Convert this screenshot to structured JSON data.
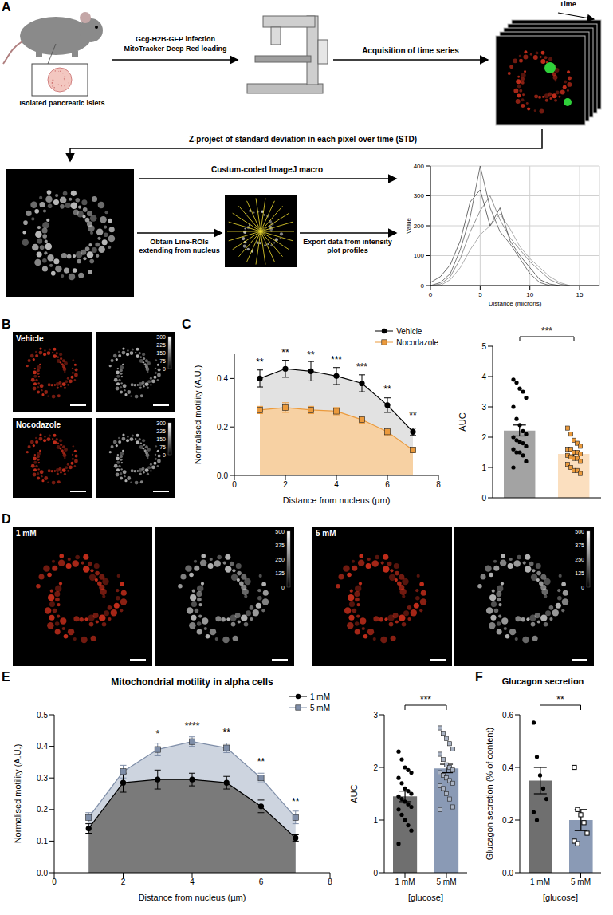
{
  "schematic": {
    "letter": "A",
    "infection_label": "Gcg-H2B-GFP infection",
    "loading_label": "MitoTracker Deep Red loading",
    "islets_label": "Isolated pancreatic islets",
    "acquisition_label": "Acquisition of time series",
    "time_label": "Time",
    "projection_label": "Z-project of standard deviation in each pixel over time (STD)",
    "macro_label": "Custum-coded ImageJ macro",
    "roi_label": "Obtain Line-ROIs extending from nucleus",
    "export_label": "Export data from intensity plot profiles"
  },
  "micrographs": [
    {
      "letter": "B",
      "labels": [
        "Vehicle",
        "Nocodazole"
      ],
      "colorbar_ticks": [
        300,
        225,
        150,
        75,
        0
      ]
    },
    {
      "letter": "D",
      "labels": [
        "1 mM",
        "5 mM"
      ],
      "colorbar_ticks": [
        500,
        375,
        250,
        125,
        0
      ]
    }
  ],
  "chart_data": [
    {
      "type": "line",
      "x_label": "Distance (microns)",
      "y_label": "Value",
      "x": [
        0,
        1,
        2,
        3,
        4,
        5,
        6,
        7,
        8,
        9,
        10,
        11,
        12,
        13,
        14
      ],
      "xlim": [
        0,
        17
      ],
      "xticks": [
        0,
        5,
        10,
        15
      ],
      "ylim": [
        0,
        400
      ],
      "yticks": [
        0,
        100,
        200,
        300,
        400
      ],
      "grid": true,
      "series": [
        {
          "color": "#555555",
          "values": [
            0,
            10,
            40,
            120,
            230,
            400,
            260,
            180,
            140,
            90,
            40,
            10,
            0,
            null,
            null
          ]
        },
        {
          "color": "#777777",
          "values": [
            0,
            5,
            30,
            90,
            180,
            250,
            300,
            220,
            160,
            120,
            80,
            50,
            20,
            5,
            0
          ]
        },
        {
          "color": "#999999",
          "values": [
            0,
            0,
            20,
            60,
            120,
            170,
            200,
            240,
            190,
            130,
            90,
            60,
            30,
            10,
            0
          ]
        },
        {
          "color": "#444444",
          "values": [
            10,
            30,
            70,
            150,
            280,
            320,
            200,
            260,
            150,
            100,
            60,
            20,
            5,
            0,
            null
          ]
        }
      ]
    },
    {
      "type": "line",
      "panel": "C",
      "x_label": "Distance from nucleus (µm)",
      "y_label": "Normalised motility (A.U.)",
      "x": [
        1,
        2,
        3,
        4,
        5,
        6,
        7
      ],
      "xlim": [
        0,
        8
      ],
      "xticks": [
        0,
        2,
        4,
        6,
        8
      ],
      "ylim": [
        0,
        0.5
      ],
      "yticks": [
        {
          "value": 0,
          "label": "0.0"
        },
        0.2,
        0.4
      ],
      "legend": "upper right",
      "series": [
        {
          "name": "Vehicle",
          "color": "#000000",
          "marker": "circle",
          "values": [
            0.4,
            0.44,
            0.43,
            0.41,
            0.38,
            0.29,
            0.18
          ],
          "errors": [
            0.035,
            0.035,
            0.04,
            0.035,
            0.035,
            0.03,
            0.015
          ]
        },
        {
          "name": "Nocodazole",
          "color": "#eb9a3c",
          "marker": "square",
          "values": [
            0.27,
            0.28,
            0.27,
            0.265,
            0.23,
            0.18,
            0.105
          ],
          "errors": [
            0.015,
            0.02,
            0.015,
            0.015,
            0.015,
            0.015,
            0.01
          ]
        }
      ],
      "significance": [
        "**",
        "**",
        "**",
        "***",
        "***",
        "**",
        "**"
      ]
    },
    {
      "type": "bar",
      "y_label": "AUC",
      "categories": [
        null,
        null
      ],
      "ylim": [
        0,
        5
      ],
      "yticks": [
        0,
        1,
        2,
        3,
        4,
        5
      ],
      "tick_labels": "y",
      "significance": "***",
      "series": [
        {
          "type": "bar",
          "colors": [
            "#a3a3a3",
            "#fbdfbf"
          ],
          "values": [
            2.22,
            1.45
          ],
          "errors": [
            0.18,
            0.08
          ]
        },
        {
          "type": "scatter",
          "color": "#000000",
          "marker": "circle",
          "values": [
            [
              3.9,
              3.8,
              3.6,
              3.5,
              3.3,
              3.0,
              2.6,
              2.4,
              2.2,
              2.1,
              2.0,
              1.9,
              1.85,
              1.8,
              1.7,
              1.6,
              1.5,
              1.5,
              1.4,
              1.2,
              1.0
            ],
            null
          ]
        },
        {
          "type": "scatter",
          "color": "#eb9a3c",
          "marker": "square",
          "values": [
            null,
            [
              2.3,
              2.1,
              1.9,
              1.8,
              1.7,
              1.6,
              1.6,
              1.5,
              1.5,
              1.45,
              1.4,
              1.35,
              1.3,
              1.3,
              1.2,
              1.1,
              1.0,
              0.9,
              0.9,
              0.8
            ]
          ]
        }
      ]
    },
    {
      "type": "line",
      "panel": "E",
      "title": "Mitochondrial motility in alpha cells",
      "x_label": "Distance from nucleus (µm)",
      "y_label": "Normalised motility (A.U.)",
      "x": [
        1,
        2,
        3,
        4,
        5,
        6,
        7
      ],
      "xlim": [
        0,
        8
      ],
      "xticks": [
        0,
        2,
        4,
        6,
        8
      ],
      "ylim": [
        0,
        0.5
      ],
      "yticks": [
        {
          "value": 0,
          "label": "0.0"
        },
        0.1,
        0.2,
        0.3,
        0.4,
        0.5
      ],
      "legend": "upper right",
      "series": [
        {
          "name": "1 mM",
          "color": "#000000",
          "marker": "circle",
          "values": [
            0.14,
            0.285,
            0.295,
            0.295,
            0.285,
            0.21,
            0.11
          ],
          "errors": [
            0.015,
            0.03,
            0.03,
            0.02,
            0.02,
            0.02,
            0.01
          ]
        },
        {
          "name": "5 mM",
          "color": "#7f8ea8",
          "marker": "square",
          "values": [
            0.175,
            0.32,
            0.39,
            0.415,
            0.395,
            0.3,
            0.175
          ],
          "errors": [
            0.015,
            0.02,
            0.02,
            0.015,
            0.015,
            0.015,
            0.02
          ]
        }
      ],
      "significance": [
        null,
        null,
        "*",
        "****",
        "**",
        "**",
        "**"
      ]
    },
    {
      "type": "bar",
      "x_label": "[glucose]",
      "y_label": "AUC",
      "categories": [
        "1 mM",
        "5 mM"
      ],
      "ylim": [
        0,
        3
      ],
      "yticks": [
        0,
        1,
        2,
        3
      ],
      "significance": "***",
      "series": [
        {
          "type": "bar",
          "colors": [
            "#6f6f6f",
            "#8a9ab5"
          ],
          "values": [
            1.45,
            1.98
          ],
          "errors": [
            0.1,
            0.08
          ]
        },
        {
          "type": "scatter",
          "color": "#000000",
          "marker": "circle",
          "values": [
            [
              2.3,
              2.15,
              2.0,
              1.95,
              1.9,
              1.8,
              1.7,
              1.6,
              1.55,
              1.5,
              1.45,
              1.4,
              1.35,
              1.3,
              1.25,
              1.2,
              1.1,
              1.0,
              0.9,
              0.8,
              0.55
            ],
            null
          ]
        },
        {
          "type": "scatter",
          "color": "#aab3c3",
          "marker": "square",
          "values": [
            null,
            [
              2.75,
              2.65,
              2.55,
              2.45,
              2.35,
              2.25,
              2.15,
              2.05,
              2.0,
              1.95,
              1.9,
              1.85,
              1.8,
              1.75,
              1.7,
              1.65,
              1.6,
              1.5,
              1.4,
              1.25,
              1.2
            ]
          ]
        }
      ]
    },
    {
      "type": "bar",
      "panel": "F",
      "title": "Glucagon secretion",
      "x_label": "[glucose]",
      "y_label": "Glucagon secretion (% of content)",
      "categories": [
        "1 mM",
        "5 mM"
      ],
      "ylim": [
        0,
        0.6
      ],
      "yticks": [
        {
          "value": 0,
          "label": "0.0"
        },
        0.2,
        0.4,
        0.6
      ],
      "significance": "**",
      "series": [
        {
          "type": "bar",
          "colors": [
            "#6f6f6f",
            "#8a9ab5"
          ],
          "values": [
            0.35,
            0.2
          ],
          "errors": [
            0.05,
            0.04
          ]
        },
        {
          "type": "scatter",
          "color": "#000000",
          "marker": "circle",
          "values": [
            [
              0.57,
              0.44,
              0.37,
              0.32,
              0.28,
              0.23,
              0.2
            ],
            null
          ]
        },
        {
          "type": "scatter",
          "color": "#000000",
          "marker": "open_square",
          "values": [
            null,
            [
              0.4,
              0.24,
              0.22,
              0.19,
              0.15,
              0.12,
              0.11
            ]
          ]
        }
      ]
    }
  ]
}
